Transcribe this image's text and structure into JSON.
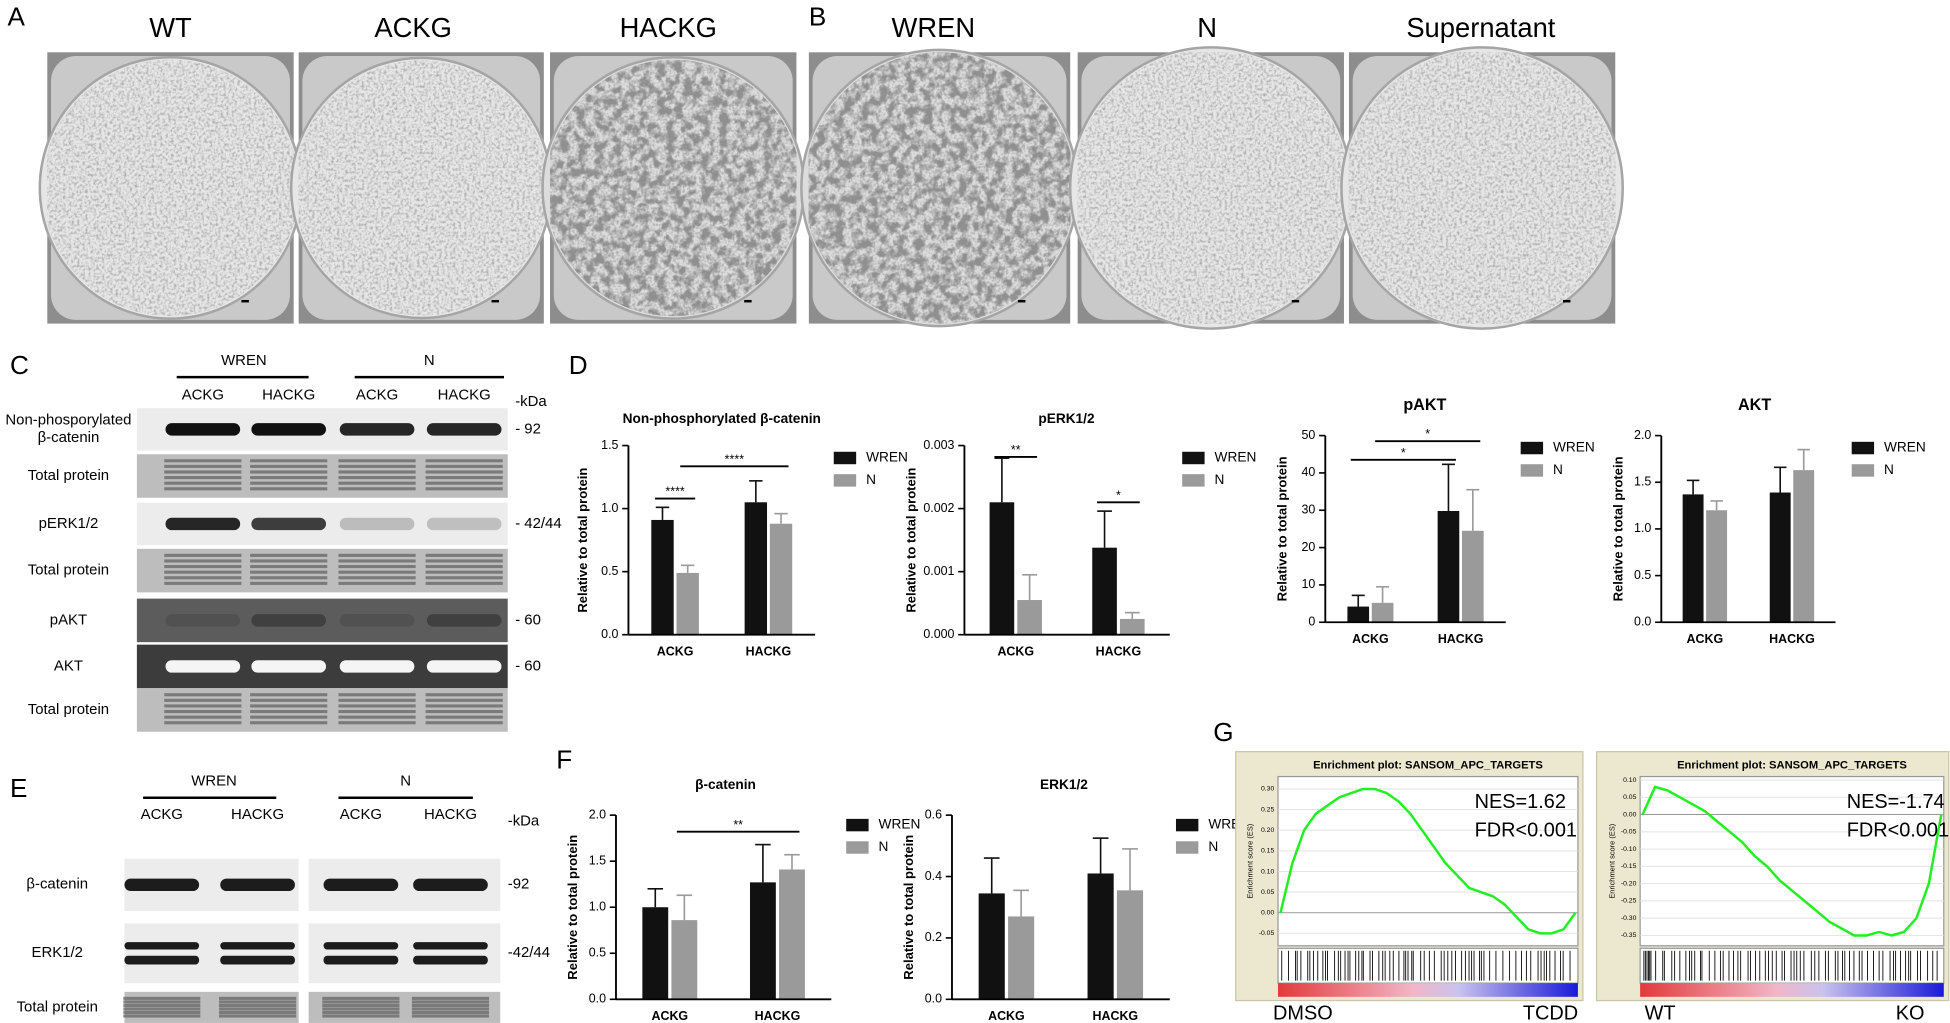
{
  "panel_labels": [
    "A",
    "B",
    "C",
    "D",
    "E",
    "F",
    "G"
  ],
  "panel_a": {
    "titles": [
      "WT",
      "ACKG",
      "HACKG"
    ]
  },
  "panel_b": {
    "titles": [
      "WREN",
      "N",
      "Supernatant"
    ]
  },
  "blot_c": {
    "groups": [
      "WREN",
      "N"
    ],
    "lanes": [
      "ACKG",
      "HACKG",
      "ACKG",
      "HACKG"
    ],
    "unit": "-kDa",
    "rows": [
      {
        "label": [
          "Non-phosporylated",
          "β-catenin"
        ],
        "size": "- 92"
      },
      {
        "label": [
          "Total protein"
        ]
      },
      {
        "label": [
          "pERK1/2"
        ],
        "size": "- 42/44"
      },
      {
        "label": [
          "Total protein"
        ]
      },
      {
        "label": [
          "pAKT"
        ],
        "size": "- 60"
      },
      {
        "label": [
          "AKT"
        ],
        "size": "- 60"
      },
      {
        "label": [
          "Total protein"
        ]
      }
    ]
  },
  "blot_e": {
    "groups": [
      "WREN",
      "N"
    ],
    "lanes": [
      "ACKG",
      "HACKG",
      "ACKG",
      "HACKG"
    ],
    "unit": "-kDa",
    "rows": [
      {
        "label": [
          "β-catenin"
        ],
        "size": "-92"
      },
      {
        "label": [
          "ERK1/2"
        ],
        "size": "-42/44"
      },
      {
        "label": [
          "Total protein"
        ]
      }
    ]
  },
  "chart_data": [
    {
      "type": "bar",
      "title": "Non-phosphorylated β-catenin",
      "y_label": "Relative to total protein",
      "categories": [
        "ACKG",
        "HACKG"
      ],
      "series": [
        {
          "name": "WREN",
          "color": "#111111",
          "values": [
            0.91,
            1.05
          ],
          "errors": [
            0.1,
            0.17
          ]
        },
        {
          "name": "N",
          "color": "#9a9a9a",
          "values": [
            0.49,
            0.88
          ],
          "errors": [
            0.06,
            0.08
          ]
        }
      ],
      "ylim": [
        0,
        1.5
      ],
      "yticks": [
        {
          "value": 0,
          "label": "0.0"
        },
        0.5,
        {
          "value": 1,
          "label": "1.0"
        },
        1.5
      ],
      "legend": "right",
      "annotations": [
        "****",
        "****"
      ]
    },
    {
      "type": "bar",
      "title": "pERK1/2",
      "y_label": "Relative to total protein",
      "categories": [
        "ACKG",
        "HACKG"
      ],
      "series": [
        {
          "name": "WREN",
          "color": "#111111",
          "values": [
            0.0021,
            0.00138
          ],
          "errors": [
            0.0007,
            0.00058
          ]
        },
        {
          "name": "N",
          "color": "#9a9a9a",
          "values": [
            0.00055,
            0.00025
          ],
          "errors": [
            0.0004,
            0.0001
          ]
        }
      ],
      "ylim": [
        0,
        0.003
      ],
      "yticks": [
        {
          "value": 0,
          "label": "0.000"
        },
        0.001,
        0.002,
        0.003
      ],
      "legend": "right",
      "annotations": [
        "**",
        "*"
      ]
    },
    {
      "type": "bar",
      "title": "pAKT",
      "y_label": "Relative to total protein",
      "categories": [
        "ACKG",
        "HACKG"
      ],
      "series": [
        {
          "name": "WREN",
          "color": "#111111",
          "values": [
            4.2,
            29.8
          ],
          "errors": [
            3,
            12.5
          ]
        },
        {
          "name": "N",
          "color": "#9a9a9a",
          "values": [
            5.2,
            24.5
          ],
          "errors": [
            4.3,
            11
          ]
        }
      ],
      "ylim": [
        0,
        50
      ],
      "yticks": [
        0,
        10,
        20,
        30,
        40,
        50
      ],
      "legend": "right",
      "annotations": [
        "*",
        "*"
      ]
    },
    {
      "type": "bar",
      "title": "AKT",
      "y_label": "Relative to total protein",
      "categories": [
        "ACKG",
        "HACKG"
      ],
      "series": [
        {
          "name": "WREN",
          "color": "#111111",
          "values": [
            1.37,
            1.39
          ],
          "errors": [
            0.15,
            0.27
          ]
        },
        {
          "name": "N",
          "color": "#9a9a9a",
          "values": [
            1.2,
            1.63
          ],
          "errors": [
            0.1,
            0.22
          ]
        }
      ],
      "ylim": [
        0,
        2
      ],
      "yticks": [
        {
          "value": 0,
          "label": "0.0"
        },
        0.5,
        {
          "value": 1,
          "label": "1.0"
        },
        1.5,
        {
          "value": 2,
          "label": "2.0"
        }
      ],
      "legend": "right",
      "annotations": []
    },
    {
      "type": "bar",
      "title": "β-catenin",
      "y_label": "Relative to total protein",
      "categories": [
        "ACKG",
        "HACKG"
      ],
      "series": [
        {
          "name": "WREN",
          "color": "#111111",
          "values": [
            1.0,
            1.27
          ],
          "errors": [
            0.2,
            0.41
          ]
        },
        {
          "name": "N",
          "color": "#9a9a9a",
          "values": [
            0.86,
            1.41
          ],
          "errors": [
            0.27,
            0.16
          ]
        }
      ],
      "ylim": [
        0,
        2
      ],
      "yticks": [
        {
          "value": 0,
          "label": "0.0"
        },
        0.5,
        {
          "value": 1,
          "label": "1.0"
        },
        1.5,
        {
          "value": 2,
          "label": "2.0"
        }
      ],
      "legend": "right",
      "annotations": [
        "**"
      ]
    },
    {
      "type": "bar",
      "title": "ERK1/2",
      "y_label": "Relative to total protein",
      "categories": [
        "ACKG",
        "HACKG"
      ],
      "series": [
        {
          "name": "WREN",
          "color": "#111111",
          "values": [
            0.345,
            0.41
          ],
          "errors": [
            0.115,
            0.115
          ]
        },
        {
          "name": "N",
          "color": "#9a9a9a",
          "values": [
            0.27,
            0.355
          ],
          "errors": [
            0.085,
            0.135
          ]
        }
      ],
      "ylim": [
        0,
        0.6
      ],
      "yticks": [
        {
          "value": 0,
          "label": "0.0"
        },
        0.2,
        0.4,
        0.6
      ],
      "legend": "right",
      "annotations": []
    },
    {
      "type": "line",
      "title": "Enrichment plot: SANSOM_APC_TARGETS",
      "y_label": "Enrichment score (ES)",
      "color": "#22ee22",
      "values": [
        0,
        0.12,
        0.2,
        0.24,
        0.26,
        0.28,
        0.29,
        0.3,
        0.3,
        0.29,
        0.27,
        0.24,
        0.2,
        0.16,
        0.12,
        0.09,
        0.06,
        0.05,
        0.04,
        0.02,
        -0.01,
        -0.04,
        -0.05,
        -0.05,
        -0.04,
        0.0
      ],
      "ylim": [
        -0.08,
        0.33
      ],
      "yticks": [
        {
          "value": 0.3,
          "label": "0.30"
        },
        0.25,
        {
          "value": 0.2,
          "label": "0.20"
        },
        0.15,
        {
          "value": 0.1,
          "label": "0.10"
        },
        0.05,
        {
          "value": 0,
          "label": "0.00"
        },
        -0.05
      ],
      "annotations": [
        "NES=1.62",
        "FDR<0.001"
      ],
      "phenotypes": [
        "DMSO",
        "TCDD"
      ]
    },
    {
      "type": "line",
      "title": "Enrichment plot: SANSOM_APC_TARGETS",
      "y_label": "Enrichment score (ES)",
      "color": "#22ee22",
      "values": [
        0,
        0.08,
        0.07,
        0.05,
        0.03,
        0.01,
        -0.02,
        -0.05,
        -0.08,
        -0.12,
        -0.15,
        -0.19,
        -0.22,
        -0.25,
        -0.28,
        -0.31,
        -0.33,
        -0.35,
        -0.35,
        -0.34,
        -0.35,
        -0.34,
        -0.3,
        -0.2,
        0.0
      ],
      "ylim": [
        -0.38,
        0.11
      ],
      "yticks": [
        {
          "value": 0.1,
          "label": "0.10"
        },
        0.05,
        {
          "value": 0,
          "label": "0.00"
        },
        -0.05,
        {
          "value": -0.1,
          "label": "-0.10"
        },
        -0.15,
        {
          "value": -0.2,
          "label": "-0.20"
        },
        -0.25,
        {
          "value": -0.3,
          "label": "-0.30"
        },
        -0.35
      ],
      "annotations": [
        "NES=-1.74",
        "FDR<0.001"
      ],
      "phenotypes": [
        "WT",
        "KO"
      ]
    }
  ]
}
